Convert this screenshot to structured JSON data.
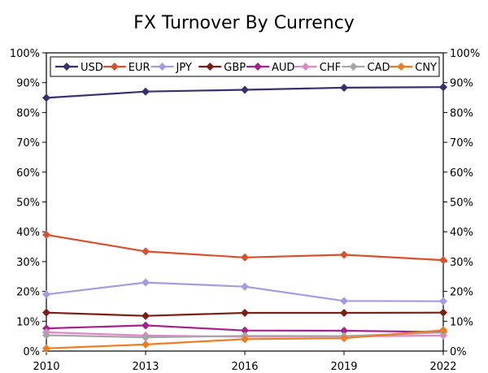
{
  "chart_data": {
    "type": "line",
    "title": "FX Turnover By Currency",
    "xlabel": "",
    "ylabel": "",
    "x": [
      "2010",
      "2013",
      "2016",
      "2019",
      "2022"
    ],
    "y_ticks": [
      "0%",
      "10%",
      "20%",
      "30%",
      "40%",
      "50%",
      "60%",
      "70%",
      "80%",
      "90%",
      "100%"
    ],
    "ylim": [
      0,
      100
    ],
    "grid": false,
    "legend_position": "top",
    "series": [
      {
        "name": "USD",
        "color": "#35306e",
        "values": [
          84.9,
          87.0,
          87.6,
          88.3,
          88.5
        ]
      },
      {
        "name": "EUR",
        "color": "#d9502f",
        "values": [
          39.0,
          33.4,
          31.4,
          32.3,
          30.5
        ]
      },
      {
        "name": "JPY",
        "color": "#a69be0",
        "values": [
          19.0,
          23.0,
          21.6,
          16.8,
          16.7
        ]
      },
      {
        "name": "GBP",
        "color": "#7a1e14",
        "values": [
          12.9,
          11.8,
          12.8,
          12.8,
          12.9
        ]
      },
      {
        "name": "AUD",
        "color": "#a4228e",
        "values": [
          7.6,
          8.6,
          6.9,
          6.8,
          6.4
        ]
      },
      {
        "name": "CHF",
        "color": "#dd88c8",
        "values": [
          6.3,
          5.2,
          4.8,
          4.9,
          5.2
        ]
      },
      {
        "name": "CAD",
        "color": "#a6a6a6",
        "values": [
          5.3,
          4.6,
          5.1,
          5.0,
          6.2
        ]
      },
      {
        "name": "CNY",
        "color": "#ec7d22",
        "values": [
          0.9,
          2.2,
          4.0,
          4.3,
          7.0
        ]
      }
    ]
  }
}
